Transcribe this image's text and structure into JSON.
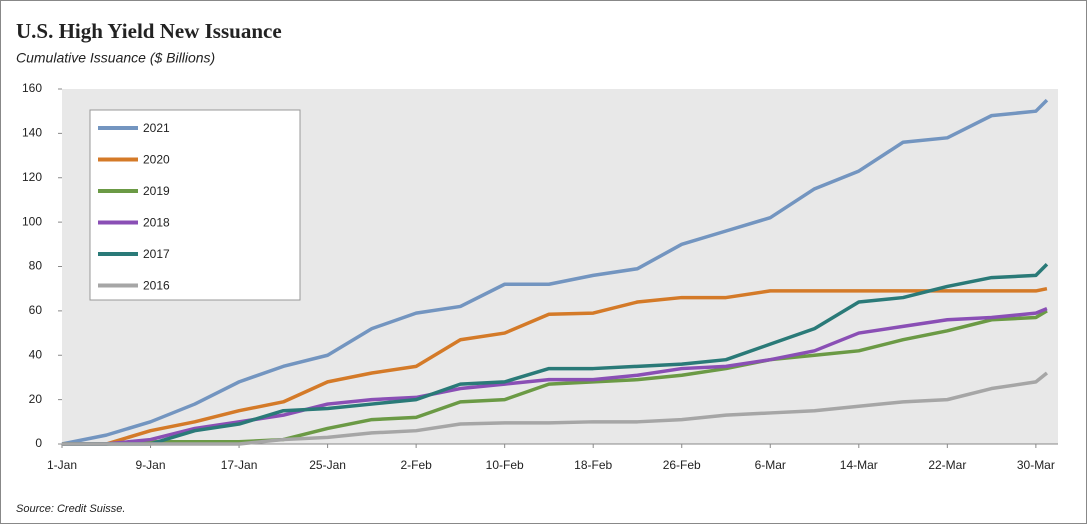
{
  "chart_data": {
    "type": "line",
    "title": "U.S. High Yield New Issuance",
    "subtitle": "Cumulative Issuance ($ Billions)",
    "source": "Source: Credit Suisse.",
    "x": [
      0,
      4,
      8,
      12,
      16,
      20,
      24,
      28,
      32,
      36,
      40,
      44,
      48,
      52,
      56,
      60,
      64,
      68,
      72,
      76,
      80,
      84,
      88,
      89
    ],
    "xlim": [
      0,
      90
    ],
    "xticks": [
      {
        "value": 0,
        "label": "1-Jan"
      },
      {
        "value": 8,
        "label": "9-Jan"
      },
      {
        "value": 16,
        "label": "17-Jan"
      },
      {
        "value": 24,
        "label": "25-Jan"
      },
      {
        "value": 32,
        "label": "2-Feb"
      },
      {
        "value": 40,
        "label": "10-Feb"
      },
      {
        "value": 48,
        "label": "18-Feb"
      },
      {
        "value": 56,
        "label": "26-Feb"
      },
      {
        "value": 64,
        "label": "6-Mar"
      },
      {
        "value": 72,
        "label": "14-Mar"
      },
      {
        "value": 80,
        "label": "22-Mar"
      },
      {
        "value": 88,
        "label": "30-Mar"
      }
    ],
    "ylim": [
      0,
      160
    ],
    "yticks": [
      0,
      20,
      40,
      60,
      80,
      100,
      120,
      140,
      160
    ],
    "grid": false,
    "legend": "upper-left",
    "series": [
      {
        "name": "2021",
        "color": "#7395c0",
        "values": [
          0,
          4,
          10,
          18,
          28,
          35,
          40,
          52,
          59,
          62,
          72,
          72,
          76,
          79,
          90,
          96,
          102,
          115,
          123,
          136,
          138,
          148,
          150,
          155
        ]
      },
      {
        "name": "2020",
        "color": "#d47a28",
        "values": [
          0,
          0,
          6,
          10,
          15,
          19,
          28,
          32,
          35,
          47,
          50,
          58.5,
          59,
          64,
          66,
          66,
          69,
          69,
          69,
          69,
          69,
          69,
          69,
          70
        ]
      },
      {
        "name": "2019",
        "color": "#6b9a45",
        "values": [
          0,
          0,
          1,
          1,
          1,
          2,
          7,
          11,
          12,
          19,
          20,
          27,
          28,
          29,
          31,
          34,
          38,
          40,
          42,
          47,
          51,
          56,
          57,
          60
        ]
      },
      {
        "name": "2018",
        "color": "#8a4fb5",
        "values": [
          0,
          0,
          2,
          7,
          10,
          13,
          18,
          20,
          21,
          25,
          27,
          29,
          29,
          31,
          34,
          35,
          38,
          42,
          50,
          53,
          56,
          57,
          59,
          61
        ]
      },
      {
        "name": "2017",
        "color": "#2a7a78",
        "values": [
          0,
          0,
          0,
          6,
          9,
          15,
          16,
          18,
          20,
          27,
          28,
          34,
          34,
          35,
          36,
          38,
          45,
          52,
          64,
          66,
          71,
          75,
          76,
          81
        ]
      },
      {
        "name": "2016",
        "color": "#a6a6a6",
        "values": [
          0,
          0,
          0,
          0,
          0,
          2,
          3,
          5,
          6,
          9,
          9.5,
          9.5,
          10,
          10,
          11,
          13,
          14,
          15,
          17,
          19,
          20,
          25,
          28,
          32
        ]
      }
    ]
  }
}
